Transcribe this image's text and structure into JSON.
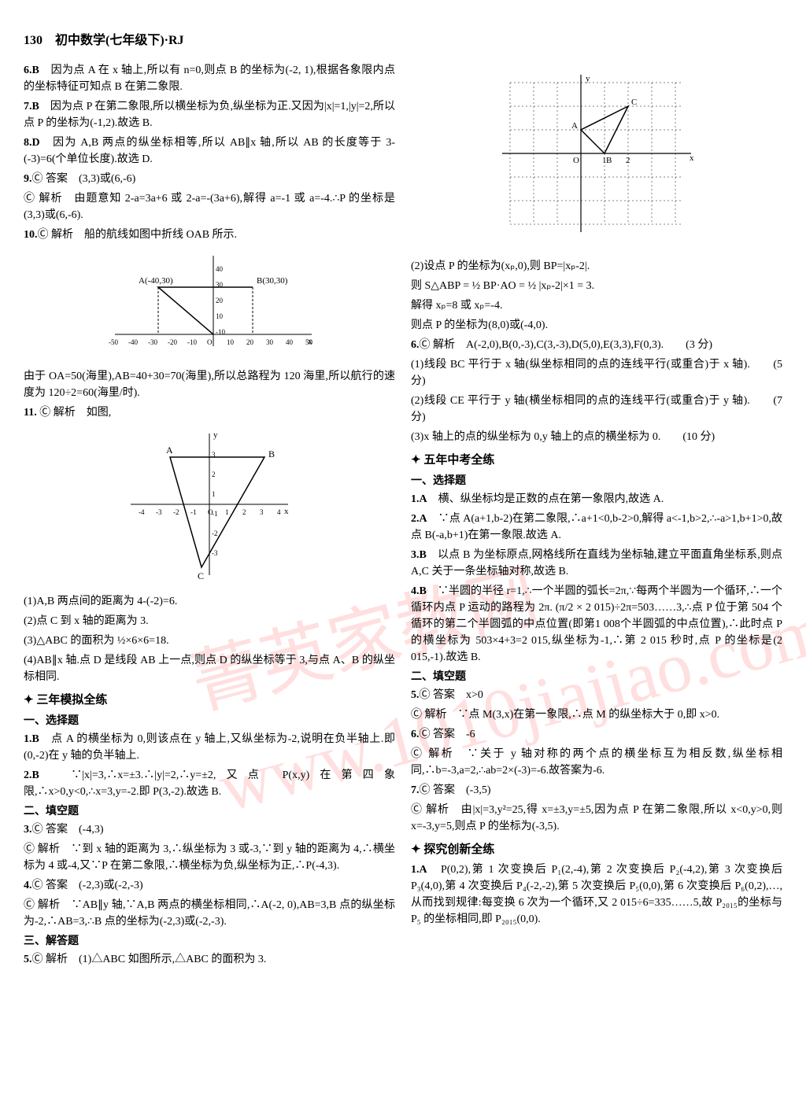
{
  "header": "130　初中数学(七年级下)·RJ",
  "watermark_text": "菁英家教网 www.1010jiajiao.com",
  "left": {
    "items": [
      {
        "label": "6.B",
        "text": "　因为点 A 在 x 轴上,所以有 n=0,则点 B 的坐标为(-2, 1),根据各象限内点的坐标特征可知点 B 在第二象限."
      },
      {
        "label": "7.B",
        "text": "　因为点 P 在第二象限,所以横坐标为负,纵坐标为正.又因为|x|=1,|y|=2,所以点 P 的坐标为(-1,2).故选 B."
      },
      {
        "label": "8.D",
        "text": "　因为 A,B 两点的纵坐标相等,所以 AB∥x 轴,所以 AB 的长度等于 3-(-3)=6(个单位长度).故选 D."
      },
      {
        "label": "9.",
        "text": "Ⓒ 答案　(3,3)或(6,-6)"
      },
      {
        "label": "",
        "text": "Ⓒ 解析　由题意知 2-a=3a+6 或 2-a=-(3a+6),解得 a=-1 或 a=-4.∴P 的坐标是(3,3)或(6,-6)."
      },
      {
        "label": "10.",
        "text": "Ⓒ 解析　船的航线如图中折线 OAB 所示."
      }
    ],
    "graph1": {
      "pointA": "A(-40,30)",
      "pointB": "B(30,30)",
      "xticks": [
        "-50",
        "-40",
        "-30",
        "-20",
        "-10",
        "O",
        "10",
        "20",
        "30",
        "40",
        "50"
      ],
      "yticks": [
        "40",
        "30",
        "20",
        "10",
        "-10"
      ],
      "axis_label_x": "x"
    },
    "after_graph1": [
      "由于 OA=50(海里),AB=40+30=70(海里),所以总路程为 120 海里,所以航行的速度为 120÷2=60(海里/时)."
    ],
    "item11": {
      "label": "11.",
      "text": "Ⓒ 解析　如图,"
    },
    "graph2": {
      "xticks": [
        "-4",
        "-3",
        "-2",
        "-1",
        "O",
        "1",
        "2",
        "3",
        "4"
      ],
      "yticks": [
        "3",
        "2",
        "1",
        "-1",
        "-2",
        "-3"
      ],
      "axis_label_x": "x",
      "axis_label_y": "y",
      "labels": [
        "A",
        "B",
        "C"
      ]
    },
    "after_graph2": [
      "(1)A,B 两点间的距离为 4-(-2)=6.",
      "(2)点 C 到 x 轴的距离为 3.",
      "(3)△ABC 的面积为 ½×6×6=18.",
      "(4)AB∥x 轴.点 D 是线段 AB 上一点,则点 D 的纵坐标等于 3,与点 A、B 的纵坐标相同."
    ],
    "sections": [
      {
        "title": "三年模拟全练",
        "subs": [
          {
            "head": "一、选择题",
            "items": [
              {
                "label": "1.B",
                "text": "　点 A 的横坐标为 0,则该点在 y 轴上,又纵坐标为-2,说明在负半轴上.即(0,-2)在 y 轴的负半轴上."
              },
              {
                "label": "2.B",
                "text": "　∵|x|=3,∴x=±3.∴|y|=2,∴y=±2,又点 P(x,y)在第四象限,∴x>0,y<0,∴x=3,y=-2.即 P(3,-2).故选 B."
              }
            ]
          },
          {
            "head": "二、填空题",
            "items": [
              {
                "label": "3.",
                "text": "Ⓒ 答案　(-4,3)"
              },
              {
                "label": "",
                "text": "Ⓒ 解析　∵到 x 轴的距离为 3,∴纵坐标为 3 或-3,∵到 y 轴的距离为 4,∴横坐标为 4 或-4,又∵P 在第二象限,∴横坐标为负,纵坐标为正,∴P(-4,3)."
              },
              {
                "label": "4.",
                "text": "Ⓒ 答案　(-2,3)或(-2,-3)"
              },
              {
                "label": "",
                "text": "Ⓒ 解析　∵AB∥y 轴,∵A,B 两点的横坐标相同,∴A(-2, 0),AB=3,B 点的纵坐标为-2,∴AB=3,∴B 点的坐标为(-2,3)或(-2,-3)."
              }
            ]
          },
          {
            "head": "三、解答题",
            "items": [
              {
                "label": "5.",
                "text": "Ⓒ 解析　(1)△ABC 如图所示,△ABC 的面积为 3."
              }
            ]
          }
        ]
      }
    ]
  },
  "right": {
    "graph3": {
      "xticks": [
        "O",
        "1",
        "2"
      ],
      "labels": [
        "A",
        "B",
        "C"
      ],
      "axis_label_x": "x",
      "axis_label_y": "y"
    },
    "after_graph3": [
      "(2)设点 P 的坐标为(xₚ,0),则 BP=|xₚ-2|.",
      "则 S△ABP = ½ BP·AO = ½ |xₚ-2|×1 = 3.",
      "解得 xₚ=8 或 xₚ=-4.",
      "则点 P 的坐标为(8,0)或(-4,0)."
    ],
    "item6": [
      {
        "label": "6.",
        "text": "Ⓒ 解析　A(-2,0),B(0,-3),C(3,-3),D(5,0),E(3,3),F(0,3).　　(3 分)"
      },
      {
        "label": "",
        "text": "(1)线段 BC 平行于 x 轴(纵坐标相同的点的连线平行(或重合)于 x 轴).　　(5 分)"
      },
      {
        "label": "",
        "text": "(2)线段 CE 平行于 y 轴(横坐标相同的点的连线平行(或重合)于 y 轴).　　(7 分)"
      },
      {
        "label": "",
        "text": "(3)x 轴上的点的纵坐标为 0,y 轴上的点的横坐标为 0.　　(10 分)"
      }
    ],
    "sections": [
      {
        "title": "五年中考全练",
        "subs": [
          {
            "head": "一、选择题",
            "items": [
              {
                "label": "1.A",
                "text": "　横、纵坐标均是正数的点在第一象限内,故选 A."
              },
              {
                "label": "2.A",
                "text": "　∵点 A(a+1,b-2)在第二象限,∴a+1<0,b-2>0,解得 a<-1,b>2,∴-a>1,b+1>0,故点 B(-a,b+1)在第一象限.故选 A."
              },
              {
                "label": "3.B",
                "text": "　以点 B 为坐标原点,网格线所在直线为坐标轴,建立平面直角坐标系,则点 A,C 关于一条坐标轴对称,故选 B."
              },
              {
                "label": "4.B",
                "text": "　∵半圆的半径 r=1,∴一个半圆的弧长=2π,∵每两个半圆为一个循环,∴一个循环内点 P 运动的路程为 2π. (π/2 × 2 015)÷2π=503……3,∴点 P 位于第 504 个循环的第二个半圆弧的中点位置(即第1 008个半圆弧的中点位置),∴此时点 P 的横坐标为 503×4+3=2 015,纵坐标为-1,∴第 2 015 秒时,点 P 的坐标是(2 015,-1).故选 B."
              }
            ]
          },
          {
            "head": "二、填空题",
            "items": [
              {
                "label": "5.",
                "text": "Ⓒ 答案　x>0"
              },
              {
                "label": "",
                "text": "Ⓒ 解析　∵点 M(3,x)在第一象限,∴点 M 的纵坐标大于 0,即 x>0."
              },
              {
                "label": "6.",
                "text": "Ⓒ 答案　-6"
              },
              {
                "label": "",
                "text": "Ⓒ 解析　∵关于 y 轴对称的两个点的横坐标互为相反数,纵坐标相同,∴b=-3,a=2,∴ab=2×(-3)=-6.故答案为-6."
              },
              {
                "label": "7.",
                "text": "Ⓒ 答案　(-3,5)"
              },
              {
                "label": "",
                "text": "Ⓒ 解析　由|x|=3,y²=25,得 x=±3,y=±5,因为点 P 在第二象限,所以 x<0,y>0,则 x=-3,y=5,则点 P 的坐标为(-3,5)."
              }
            ]
          }
        ]
      },
      {
        "title": "探究创新全练",
        "subs": [
          {
            "head": "",
            "items": [
              {
                "label": "1.A",
                "text": "　P(0,2),第 1 次变换后 P₁(2,-4),第 2 次变换后 P₂(-4,2),第 3 次变换后 P₃(4,0),第 4 次变换后 P₄(-2,-2),第 5 次变换后 P₅(0,0),第 6 次变换后 P₆(0,2),…,从而找到规律:每变换 6 次为一个循环,又 2 015÷6=335……5,故 P₂₀₁₅的坐标与 P₅ 的坐标相同,即 P₂₀₁₅(0,0)."
              }
            ]
          }
        ]
      }
    ]
  }
}
